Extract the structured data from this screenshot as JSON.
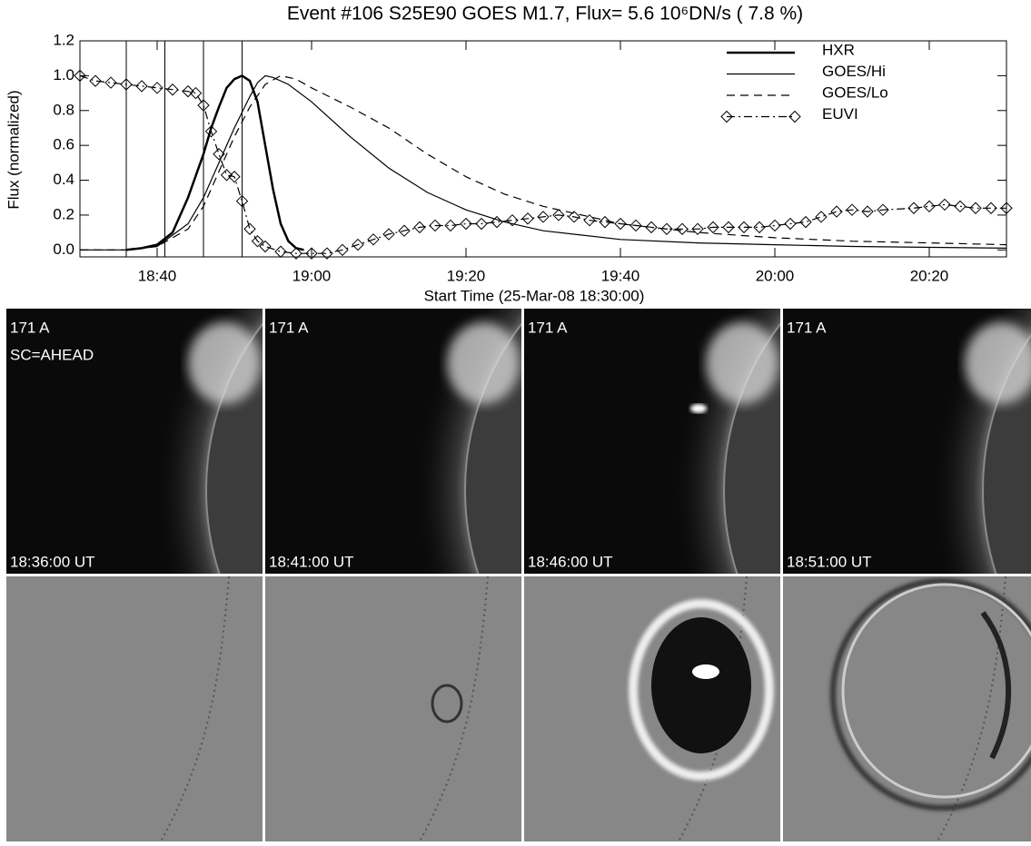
{
  "chart_data": {
    "type": "line",
    "title": "Event #106 S25E90 GOES M1.7, Flux=  5.6 10⁶DN/s (  7.8 %)",
    "x_label": "Start Time (25-Mar-08 18:30:00)",
    "y_label": "Flux (normalized)",
    "xlim": [
      0,
      120
    ],
    "ylim": [
      -0.04,
      1.2
    ],
    "xticks": [
      {
        "value": 10,
        "label": "18:40"
      },
      {
        "value": 30,
        "label": "19:00"
      },
      {
        "value": 50,
        "label": "19:20"
      },
      {
        "value": 70,
        "label": "19:40"
      },
      {
        "value": 90,
        "label": "20:00"
      },
      {
        "value": 110,
        "label": "20:20"
      }
    ],
    "yticks": [
      {
        "value": 0,
        "label": "0.0"
      },
      {
        "value": 0.2,
        "label": "0.2"
      },
      {
        "value": 0.4,
        "label": "0.4"
      },
      {
        "value": 0.6,
        "label": "0.6"
      },
      {
        "value": 0.8,
        "label": "0.8"
      },
      {
        "value": 1.0,
        "label": "1.0"
      },
      {
        "value": 1.2,
        "label": "1.2"
      }
    ],
    "vlines": [
      6,
      11,
      16,
      21
    ],
    "series": [
      {
        "name": "HXR",
        "color": "#000000",
        "line_style": "solid",
        "line_width": 2.5,
        "x": [
          6,
          8,
          10,
          12,
          14,
          16,
          17,
          18,
          19,
          20,
          21,
          22,
          23,
          24,
          25,
          26,
          27,
          28,
          29
        ],
        "values": [
          0,
          0.01,
          0.03,
          0.1,
          0.3,
          0.55,
          0.7,
          0.82,
          0.93,
          0.98,
          1.0,
          0.97,
          0.85,
          0.6,
          0.35,
          0.15,
          0.05,
          0.01,
          0
        ]
      },
      {
        "name": "GOES/Hi",
        "color": "#000000",
        "line_style": "solid",
        "line_width": 1.2,
        "x": [
          0,
          6,
          10,
          14,
          16,
          18,
          20,
          22,
          23,
          24,
          25,
          27,
          30,
          35,
          40,
          45,
          50,
          55,
          60,
          70,
          80,
          90,
          100,
          120
        ],
        "values": [
          0,
          0,
          0.02,
          0.15,
          0.3,
          0.5,
          0.7,
          0.88,
          0.96,
          1.0,
          0.99,
          0.95,
          0.85,
          0.65,
          0.47,
          0.33,
          0.23,
          0.16,
          0.11,
          0.06,
          0.04,
          0.03,
          0.02,
          0.01
        ]
      },
      {
        "name": "GOES/Lo",
        "color": "#000000",
        "line_style": "dashed",
        "line_width": 1.2,
        "x": [
          0,
          6,
          10,
          14,
          16,
          18,
          20,
          22,
          24,
          26,
          28,
          30,
          35,
          40,
          45,
          50,
          55,
          60,
          70,
          80,
          90,
          100,
          110,
          120
        ],
        "values": [
          0,
          0,
          0.02,
          0.12,
          0.25,
          0.45,
          0.65,
          0.82,
          0.95,
          1.0,
          0.98,
          0.93,
          0.82,
          0.7,
          0.55,
          0.42,
          0.32,
          0.25,
          0.15,
          0.1,
          0.07,
          0.05,
          0.04,
          0.03
        ]
      },
      {
        "name": "EUVI",
        "color": "#000000",
        "line_style": "dashdot",
        "line_width": 1.2,
        "marker": "diamond",
        "x": [
          0,
          2,
          4,
          6,
          8,
          10,
          12,
          14,
          15,
          16,
          17,
          18,
          19,
          20,
          21,
          22,
          23,
          24,
          26,
          28,
          30,
          32,
          34,
          36,
          38,
          40,
          42,
          44,
          46,
          48,
          50,
          52,
          54,
          56,
          58,
          60,
          62,
          64,
          66,
          68,
          70,
          72,
          74,
          76,
          78,
          80,
          82,
          84,
          86,
          88,
          90,
          92,
          94,
          96,
          98,
          100,
          102,
          104,
          108,
          110,
          112,
          114,
          116,
          118,
          120
        ],
        "values": [
          1.0,
          0.97,
          0.96,
          0.95,
          0.94,
          0.93,
          0.92,
          0.91,
          0.9,
          0.83,
          0.68,
          0.55,
          0.43,
          0.42,
          0.28,
          0.12,
          0.05,
          0.02,
          -0.01,
          -0.02,
          -0.02,
          -0.02,
          0.0,
          0.03,
          0.06,
          0.09,
          0.11,
          0.13,
          0.14,
          0.14,
          0.15,
          0.15,
          0.16,
          0.17,
          0.18,
          0.19,
          0.2,
          0.19,
          0.17,
          0.16,
          0.15,
          0.14,
          0.13,
          0.12,
          0.12,
          0.12,
          0.13,
          0.13,
          0.13,
          0.13,
          0.14,
          0.15,
          0.16,
          0.19,
          0.22,
          0.23,
          0.22,
          0.23,
          0.24,
          0.25,
          0.26,
          0.25,
          0.24,
          0.24,
          0.24
        ]
      }
    ]
  },
  "panels": [
    {
      "wavelength": "171 A",
      "spacecraft": "SC=AHEAD",
      "time": "18:36:00 UT"
    },
    {
      "wavelength": "171 A",
      "time": "18:41:00 UT"
    },
    {
      "wavelength": "171 A",
      "time": "18:46:00 UT"
    },
    {
      "wavelength": "171 A",
      "time": "18:51:00 UT"
    }
  ]
}
